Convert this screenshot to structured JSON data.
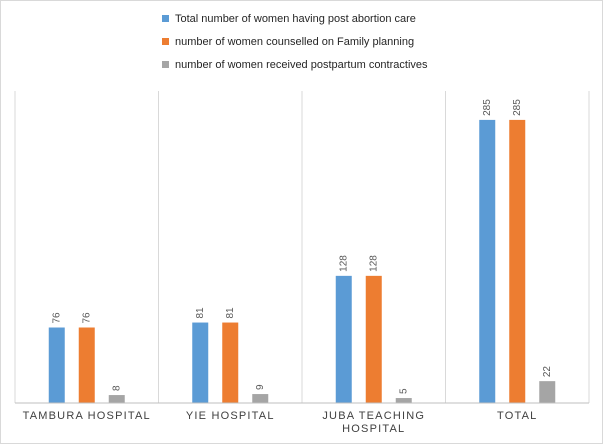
{
  "chart_data": {
    "type": "bar",
    "categories": [
      "TAMBURA HOSPITAL",
      "YIE HOSPITAL",
      "JUBA TEACHING HOSPITAL",
      "TOTAL"
    ],
    "series": [
      {
        "name": "Total number of women having post abortion care",
        "color": "#5b9bd5",
        "values": [
          76,
          81,
          128,
          285
        ]
      },
      {
        "name": "number of women counselled on Family planning",
        "color": "#ed7d31",
        "values": [
          76,
          81,
          128,
          285
        ]
      },
      {
        "name": "number of women received postpartum contractives",
        "color": "#a5a5a5",
        "values": [
          8,
          9,
          5,
          22
        ]
      }
    ],
    "ylim": [
      0,
      300
    ],
    "grid": false,
    "legend_position": "top",
    "data_labels": true,
    "category_separators": true
  }
}
